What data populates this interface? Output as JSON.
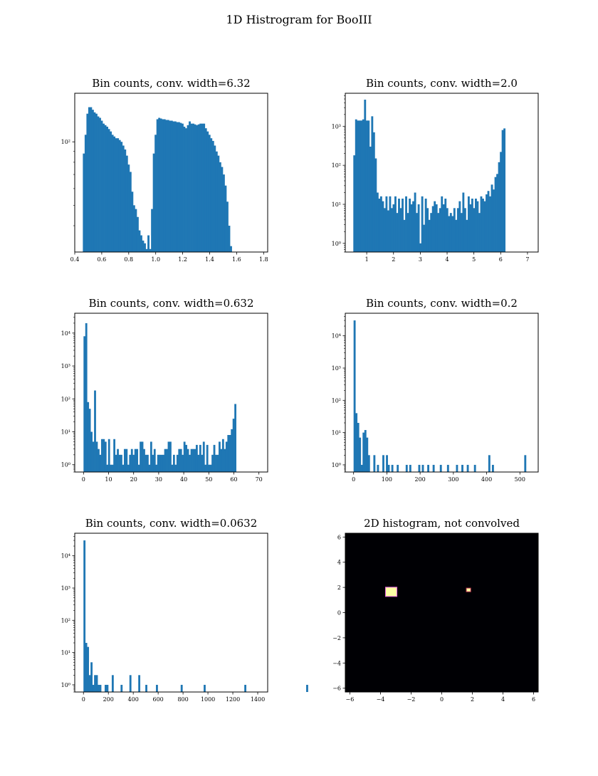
{
  "figure": {
    "suptitle": "1D Histrogram for BooIII"
  },
  "chart_data": [
    {
      "type": "histogram",
      "title": "Bin counts, conv. width=6.32",
      "log_y": true,
      "x_range": [
        0.4,
        1.83
      ],
      "y_range": [
        30,
        170
      ],
      "x_ticks": [
        0.4,
        0.6,
        0.8,
        1.0,
        1.2,
        1.4,
        1.6,
        1.8
      ],
      "x_tick_labels": [
        "0.4",
        "0.6",
        "0.8",
        "1.0",
        "1.2",
        "1.4",
        "1.6",
        "1.8"
      ],
      "y_ticks": [
        100
      ],
      "y_tick_labels": [
        "10²"
      ],
      "bin_start": 0.46,
      "bin_width": 0.0133,
      "values": [
        88,
        108,
        136,
        146,
        146,
        142,
        138,
        136,
        132,
        130,
        126,
        122,
        120,
        118,
        115,
        112,
        108,
        106,
        104,
        104,
        102,
        100,
        96,
        92,
        86,
        78,
        72,
        58,
        50,
        48,
        44,
        38,
        36,
        34,
        33,
        31,
        36,
        31,
        48,
        88,
        108,
        128,
        130,
        129,
        128,
        128,
        127,
        127,
        126,
        126,
        125,
        125,
        124,
        124,
        123,
        122,
        118,
        116,
        120,
        125,
        122,
        122,
        121,
        120,
        121,
        122,
        122,
        122,
        116,
        112,
        108,
        104,
        101,
        96,
        90,
        86,
        80,
        76,
        70,
        62,
        52,
        40,
        32
      ]
    },
    {
      "type": "histogram",
      "title": "Bin counts, conv. width=2.0",
      "log_y": true,
      "x_range": [
        0.2,
        7.4
      ],
      "y_range": [
        0.6,
        7000
      ],
      "x_ticks": [
        1,
        2,
        3,
        4,
        5,
        6,
        7
      ],
      "x_tick_labels": [
        "1",
        "2",
        "3",
        "4",
        "5",
        "6",
        "7"
      ],
      "y_ticks": [
        1,
        10,
        100,
        1000
      ],
      "y_tick_labels": [
        "10⁰",
        "10¹",
        "10²",
        "10³"
      ],
      "bin_start": 0.5,
      "bin_width": 0.0667,
      "values": [
        180,
        1500,
        1400,
        1400,
        1400,
        1500,
        4800,
        1400,
        1400,
        300,
        1800,
        700,
        150,
        20,
        14,
        16,
        12,
        8,
        16,
        7,
        16,
        8,
        10,
        16,
        6,
        14,
        8,
        14,
        4,
        16,
        6,
        14,
        10,
        12,
        20,
        6,
        10,
        1,
        16,
        3,
        14,
        8,
        4,
        6,
        9,
        12,
        10,
        6,
        8,
        16,
        10,
        14,
        8,
        5,
        6,
        5,
        8,
        4,
        8,
        12,
        6,
        20,
        8,
        4,
        16,
        10,
        14,
        8,
        14,
        12,
        6,
        16,
        14,
        12,
        18,
        22,
        16,
        32,
        24,
        50,
        60,
        120,
        220,
        800,
        880
      ]
    },
    {
      "type": "histogram",
      "title": "Bin counts, conv. width=0.632",
      "log_y": true,
      "x_range": [
        -3.5,
        73.5
      ],
      "y_range": [
        0.6,
        40000
      ],
      "x_ticks": [
        0,
        10,
        20,
        30,
        40,
        50,
        60,
        70
      ],
      "x_tick_labels": [
        "0",
        "10",
        "20",
        "30",
        "40",
        "50",
        "60",
        "70"
      ],
      "y_ticks": [
        1,
        10,
        100,
        1000,
        10000
      ],
      "y_tick_labels": [
        "10⁰",
        "10¹",
        "10²",
        "10³",
        "10⁴"
      ],
      "bin_start": 0,
      "bin_width": 0.7,
      "values": [
        8000,
        20000,
        80,
        50,
        10,
        5,
        180,
        5,
        3,
        2,
        6,
        6,
        5,
        1,
        6,
        1,
        1,
        6,
        2,
        3,
        2,
        2,
        1,
        3,
        3,
        1,
        2,
        3,
        2,
        3,
        3,
        1,
        5,
        5,
        3,
        2,
        2,
        1,
        5,
        2,
        3,
        1,
        2,
        2,
        2,
        2,
        3,
        3,
        5,
        5,
        1,
        2,
        1,
        2,
        3,
        3,
        2,
        5,
        4,
        3,
        2,
        3,
        3,
        3,
        4,
        2,
        4,
        2,
        5,
        1,
        4,
        1,
        1,
        2,
        4,
        2,
        2,
        5,
        3,
        6,
        3,
        5,
        8,
        8,
        12,
        25,
        70
      ]
    },
    {
      "type": "histogram",
      "title": "Bin counts, conv. width=0.2",
      "log_y": true,
      "x_range": [
        -25,
        555
      ],
      "y_range": [
        0.6,
        50000
      ],
      "x_ticks": [
        0,
        100,
        200,
        300,
        400,
        500
      ],
      "x_tick_labels": [
        "0",
        "100",
        "200",
        "300",
        "400",
        "500"
      ],
      "y_ticks": [
        1,
        10,
        100,
        1000,
        10000
      ],
      "y_tick_labels": [
        "10⁰",
        "10¹",
        "10²",
        "10³",
        "10⁴"
      ],
      "bin_start": 0,
      "bin_width": 5.4,
      "values": [
        30000,
        40,
        20,
        7,
        1,
        10,
        12,
        7,
        2,
        0,
        0,
        2,
        0,
        1,
        0,
        0,
        2,
        0,
        2,
        1,
        0,
        1,
        0,
        0,
        1,
        0,
        0,
        0,
        0,
        1,
        0,
        1,
        0,
        0,
        0,
        0,
        1,
        0,
        1,
        0,
        0,
        1,
        0,
        0,
        1,
        0,
        0,
        0,
        1,
        0,
        0,
        0,
        1,
        0,
        0,
        0,
        0,
        1,
        0,
        0,
        1,
        0,
        0,
        1,
        0,
        0,
        0,
        1,
        0,
        0,
        0,
        0,
        0,
        0,
        0,
        2,
        0,
        1,
        0,
        0,
        0,
        0,
        0,
        0,
        0,
        0,
        0,
        0,
        0,
        0,
        0,
        0,
        0,
        0,
        0,
        2,
        0,
        0
      ]
    },
    {
      "type": "histogram",
      "title": "Bin counts, conv. width=0.0632",
      "log_y": true,
      "x_range": [
        -70,
        1480
      ],
      "y_range": [
        0.6,
        50000
      ],
      "x_ticks": [
        0,
        200,
        400,
        600,
        800,
        1000,
        1200,
        1400
      ],
      "x_tick_labels": [
        "0",
        "200",
        "400",
        "600",
        "800",
        "1000",
        "1200",
        "1400"
      ],
      "y_ticks": [
        1,
        10,
        100,
        1000,
        10000
      ],
      "y_tick_labels": [
        "10⁰",
        "10¹",
        "10²",
        "10³",
        "10⁴"
      ],
      "bin_start": 0,
      "bin_width": 14.2,
      "values": [
        30000,
        20,
        15,
        2,
        5,
        1,
        2,
        2,
        1,
        1,
        0,
        0,
        1,
        1,
        0,
        0,
        2,
        0,
        0,
        0,
        0,
        1,
        0,
        0,
        0,
        0,
        2,
        0,
        0,
        0,
        0,
        2,
        0,
        0,
        0,
        1,
        0,
        0,
        0,
        0,
        0,
        1,
        0,
        0,
        0,
        0,
        0,
        0,
        0,
        0,
        0,
        0,
        0,
        0,
        0,
        1,
        0,
        0,
        0,
        0,
        0,
        0,
        0,
        0,
        0,
        0,
        0,
        0,
        1,
        0,
        0,
        0,
        0,
        0,
        0,
        0,
        0,
        0,
        0,
        0,
        0,
        0,
        0,
        0,
        0,
        0,
        0,
        0,
        0,
        0,
        0,
        1,
        0,
        0,
        0,
        0,
        0,
        0,
        0,
        0,
        0,
        0,
        0,
        0,
        0,
        0,
        0,
        0,
        0,
        0,
        0,
        0,
        0,
        0,
        0,
        0,
        0,
        0,
        0,
        0,
        0,
        0,
        0,
        0,
        0,
        0,
        1,
        0,
        0,
        0,
        0,
        0,
        0,
        0,
        0,
        0,
        0,
        0,
        0,
        0,
        0,
        0,
        0,
        0,
        0,
        0,
        0,
        0,
        0,
        0,
        0,
        0,
        0,
        0,
        0,
        0,
        0,
        0,
        0,
        0,
        0,
        0,
        0,
        0,
        0,
        0,
        0,
        1,
        0,
        0,
        0,
        0,
        0,
        0,
        0,
        0,
        0,
        0,
        0,
        0,
        0,
        0,
        0,
        0,
        0,
        0,
        0,
        0,
        0,
        0,
        0,
        0,
        0,
        0,
        0,
        0,
        0,
        1
      ]
    },
    {
      "type": "heatmap",
      "title": "2D histogram, not convolved",
      "x_range": [
        -6.3,
        6.3
      ],
      "y_range": [
        -6.3,
        6.3
      ],
      "x_ticks": [
        -6,
        -4,
        -2,
        0,
        2,
        4,
        6
      ],
      "x_tick_labels": [
        "−6",
        "−4",
        "−2",
        "0",
        "2",
        "4",
        "6"
      ],
      "y_ticks": [
        -6,
        -4,
        -2,
        0,
        2,
        4,
        6
      ],
      "y_tick_labels": [
        "−6",
        "−4",
        "−2",
        "0",
        "2",
        "4",
        "6"
      ],
      "background": "#000004",
      "hotspots": [
        {
          "x": -3.3,
          "y": 1.65,
          "size": 0.35,
          "color": "#fcffa4",
          "ring": "#e05fdf"
        },
        {
          "x": 1.75,
          "y": 1.8,
          "size": 0.12,
          "color": "#fcffa4",
          "ring": "#bc3754"
        }
      ]
    }
  ],
  "colors": {
    "bar": "#1f77b4",
    "axis": "#000000"
  }
}
